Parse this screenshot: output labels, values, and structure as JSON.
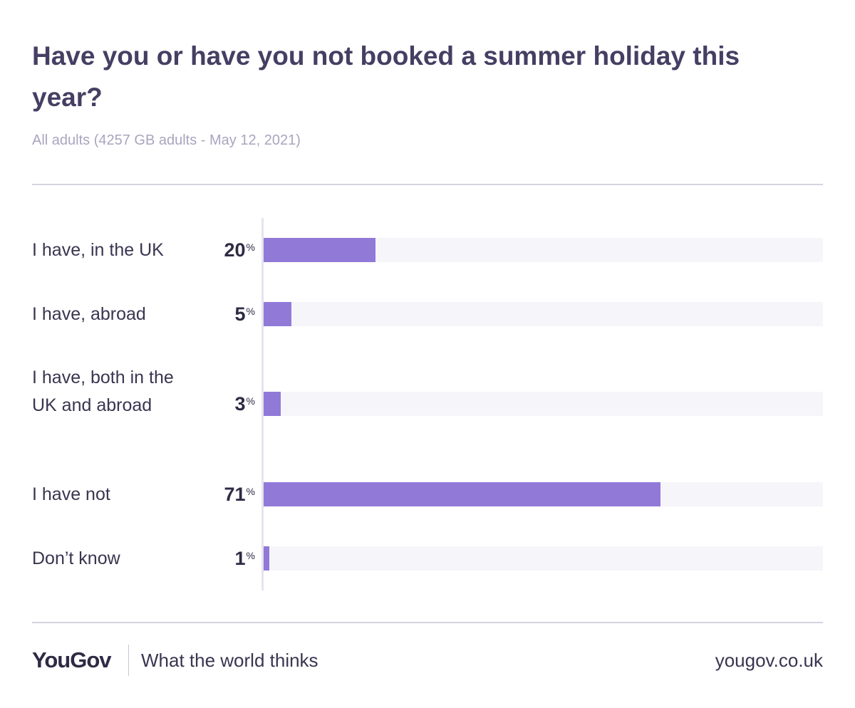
{
  "chart_data": {
    "type": "bar",
    "orientation": "horizontal",
    "title": "Have you or have you not booked a summer holiday this year?",
    "subtitle": "All adults (4257 GB adults - May 12, 2021)",
    "categories": [
      "I have, in the UK",
      "I have, abroad",
      "I have, both in the UK and abroad",
      "I have not",
      "Don’t know"
    ],
    "values": [
      20,
      5,
      3,
      71,
      1
    ],
    "value_unit": "%",
    "xlim": [
      0,
      100
    ],
    "colors": {
      "bar": "#9179d8",
      "track": "#f6f5fa",
      "title": "#463f63"
    }
  },
  "footer": {
    "brand": "YouGov",
    "tagline": "What the world thinks",
    "url": "yougov.co.uk"
  }
}
